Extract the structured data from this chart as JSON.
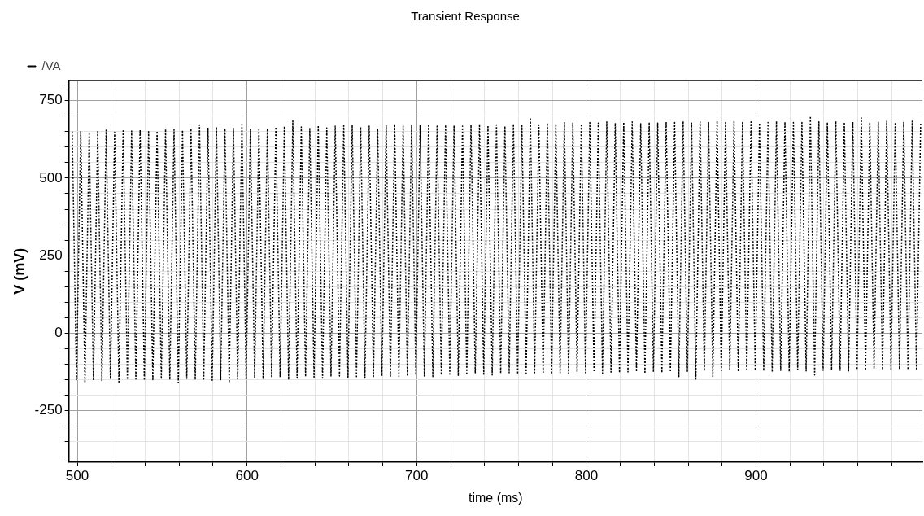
{
  "chart_data": {
    "type": "line",
    "title": "Transient Response",
    "xlabel": "time (ms)",
    "ylabel": "V (mV)",
    "xlim": [
      495,
      998
    ],
    "ylim": [
      -415,
      815
    ],
    "xticks": [
      {
        "value": 500,
        "label": "500"
      },
      {
        "value": 520,
        "label": null
      },
      {
        "value": 540,
        "label": null
      },
      {
        "value": 560,
        "label": null
      },
      {
        "value": 580,
        "label": null
      },
      {
        "value": 600,
        "label": "600"
      },
      {
        "value": 620,
        "label": null
      },
      {
        "value": 640,
        "label": null
      },
      {
        "value": 660,
        "label": null
      },
      {
        "value": 680,
        "label": null
      },
      {
        "value": 700,
        "label": "700"
      },
      {
        "value": 720,
        "label": null
      },
      {
        "value": 740,
        "label": null
      },
      {
        "value": 760,
        "label": null
      },
      {
        "value": 780,
        "label": null
      },
      {
        "value": 800,
        "label": "800"
      },
      {
        "value": 820,
        "label": null
      },
      {
        "value": 840,
        "label": null
      },
      {
        "value": 860,
        "label": null
      },
      {
        "value": 880,
        "label": null
      },
      {
        "value": 900,
        "label": "900"
      },
      {
        "value": 920,
        "label": null
      },
      {
        "value": 940,
        "label": null
      },
      {
        "value": 960,
        "label": null
      },
      {
        "value": 980,
        "label": null
      }
    ],
    "yticks": [
      {
        "value": -400,
        "label": null
      },
      {
        "value": -350,
        "label": null
      },
      {
        "value": -300,
        "label": null
      },
      {
        "value": -250,
        "label": "-250"
      },
      {
        "value": -200,
        "label": null
      },
      {
        "value": -150,
        "label": null
      },
      {
        "value": -100,
        "label": null
      },
      {
        "value": -50,
        "label": null
      },
      {
        "value": 0,
        "label": "0"
      },
      {
        "value": 50,
        "label": null
      },
      {
        "value": 100,
        "label": null
      },
      {
        "value": 150,
        "label": null
      },
      {
        "value": 200,
        "label": null
      },
      {
        "value": 250,
        "label": "250"
      },
      {
        "value": 300,
        "label": null
      },
      {
        "value": 350,
        "label": null
      },
      {
        "value": 400,
        "label": null
      },
      {
        "value": 450,
        "label": null
      },
      {
        "value": 500,
        "label": "500"
      },
      {
        "value": 550,
        "label": null
      },
      {
        "value": 600,
        "label": null
      },
      {
        "value": 650,
        "label": null
      },
      {
        "value": 700,
        "label": null
      },
      {
        "value": 750,
        "label": "750"
      },
      {
        "value": 800,
        "label": null
      }
    ],
    "grid": true,
    "legend": "top left",
    "marker": "none",
    "line_style": "dotted",
    "series": [
      {
        "name": "/VA",
        "color": "#000000",
        "x": [
          497,
          499.5,
          502,
          504.5,
          507,
          509.5,
          512,
          514.5,
          517,
          519.5,
          522,
          524.5,
          527,
          529.5,
          532,
          534.5,
          537,
          539.5,
          542,
          544.5,
          547,
          549.5,
          552,
          554.5,
          557,
          559.5,
          562,
          564.5,
          567,
          569.5,
          572,
          574.5,
          577,
          579.5,
          582,
          584.5,
          587,
          589.5,
          592,
          594.5,
          597,
          599.5,
          602,
          604.5,
          607,
          609.5,
          612,
          614.5,
          617,
          619.5,
          622,
          624.5,
          627,
          629.5,
          632,
          634.5,
          637,
          639.5,
          642,
          644.5,
          647,
          649.5,
          652,
          654.5,
          657,
          659.5,
          662,
          664.5,
          667,
          669.5,
          672,
          674.5,
          677,
          679.5,
          682,
          684.5,
          687,
          689.5,
          692,
          694.5,
          697,
          699.5,
          702,
          704.5,
          707,
          709.5,
          712,
          714.5,
          717,
          719.5,
          722,
          724.5,
          727,
          729.5,
          732,
          734.5,
          737,
          739.5,
          742,
          744.5,
          747,
          749.5,
          752,
          754.5,
          757,
          759.5,
          762,
          764.5,
          767,
          769.5,
          772,
          774.5,
          777,
          779.5,
          782,
          784.5,
          787,
          789.5,
          792,
          794.5,
          797,
          799.5,
          802,
          804.5,
          807,
          809.5,
          812,
          814.5,
          817,
          819.5,
          822,
          824.5,
          827,
          829.5,
          832,
          834.5,
          837,
          839.5,
          842,
          844.5,
          847,
          849.5,
          852,
          854.5,
          857,
          859.5,
          862,
          864.5,
          867,
          869.5,
          872,
          874.5,
          877,
          879.5,
          882,
          884.5,
          887,
          889.5,
          892,
          894.5,
          897,
          899.5,
          902,
          904.5,
          907,
          909.5,
          912,
          914.5,
          917,
          919.5,
          922,
          924.5,
          927,
          929.5,
          932,
          934.5,
          937,
          939.5,
          942,
          944.5,
          947,
          949.5,
          952,
          954.5,
          957,
          959.5,
          962,
          964.5,
          967,
          969.5,
          972,
          974.5,
          977,
          979.5,
          982,
          984.5,
          987,
          989.5,
          992,
          994.5,
          997
        ],
        "values": [
          650,
          -150,
          652,
          -160,
          648,
          -152,
          650,
          -155,
          655,
          -148,
          648,
          -158,
          653,
          -150,
          652,
          -148,
          656,
          -152,
          650,
          -150,
          652,
          -148,
          658,
          -150,
          657,
          -160,
          655,
          -146,
          660,
          -150,
          672,
          -148,
          663,
          -152,
          665,
          -150,
          660,
          -160,
          662,
          -148,
          678,
          -150,
          658,
          -145,
          662,
          -148,
          660,
          -140,
          665,
          -142,
          668,
          -150,
          685,
          -145,
          665,
          -140,
          660,
          -142,
          670,
          -145,
          662,
          -140,
          668,
          -138,
          670,
          -142,
          672,
          -140,
          665,
          -145,
          668,
          -140,
          660,
          -138,
          670,
          -142,
          675,
          -140,
          668,
          -138,
          672,
          -135,
          670,
          -138,
          675,
          -140,
          668,
          -135,
          672,
          -132,
          670,
          -138,
          668,
          -135,
          672,
          -130,
          675,
          -132,
          670,
          -135,
          672,
          -130,
          668,
          -128,
          675,
          -132,
          670,
          -130,
          695,
          -128,
          672,
          -130,
          678,
          -132,
          675,
          -128,
          680,
          -130,
          678,
          -125,
          675,
          -128,
          680,
          -125,
          678,
          -130,
          682,
          -126,
          678,
          -128,
          680,
          -125,
          682,
          -124,
          676,
          -130,
          680,
          -125,
          678,
          -128,
          682,
          -125,
          680,
          -140,
          684,
          -125,
          678,
          -148,
          682,
          -122,
          680,
          -140,
          685,
          -125,
          680,
          -120,
          683,
          -124,
          680,
          -122,
          682,
          -120,
          678,
          -122,
          680,
          -125,
          684,
          -120,
          682,
          -124,
          680,
          -118,
          680,
          -122,
          700,
          -135,
          682,
          -120,
          680,
          -118,
          684,
          -120,
          680,
          -122,
          682,
          -118,
          695,
          -120,
          680,
          -115,
          682,
          -118,
          684,
          -120,
          680,
          -116,
          682,
          -118,
          684,
          -115,
          680
        ]
      }
    ]
  }
}
